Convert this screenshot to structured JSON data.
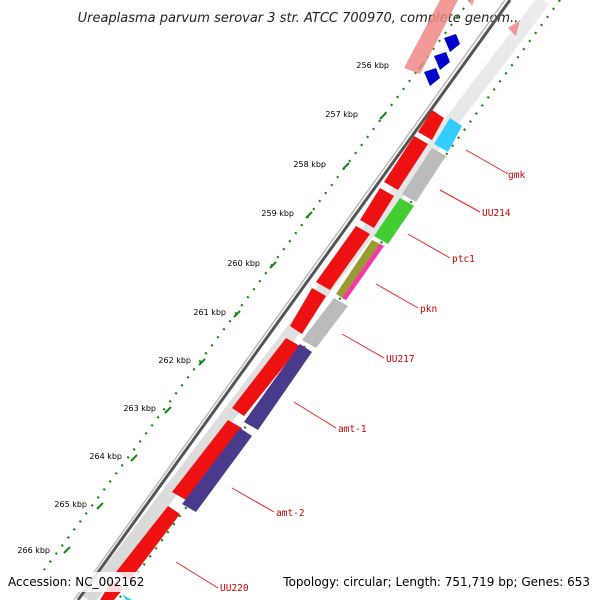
{
  "title": "Ureaplasma parvum serovar 3 str. ATCC 700970, complete genom...",
  "footer": {
    "accession": "Accession: NC_002162",
    "summary": "Topology: circular; Length: 751,719 bp; Genes: 653"
  },
  "scale": {
    "tick_labels": [
      "256 kbp",
      "257 kbp",
      "258 kbp",
      "259 kbp",
      "260 kbp",
      "261 kbp",
      "262 kbp",
      "263 kbp",
      "264 kbp",
      "265 kbp",
      "266 kbp"
    ]
  },
  "genes": [
    {
      "name": "gmk",
      "color": "#33ccff"
    },
    {
      "name": "UU214",
      "color": "#bbbbbb"
    },
    {
      "name": "ptc1",
      "color": "#44cc33"
    },
    {
      "name": "pkn",
      "color": "#ff33aa"
    },
    {
      "name": "UU217",
      "color": "#bbbbbb"
    },
    {
      "name": "amt-1",
      "color": "#4a3a8c"
    },
    {
      "name": "amt-2",
      "color": "#4a3a8c"
    },
    {
      "name": "UU220",
      "color": "#33ccff"
    }
  ],
  "colors": {
    "forward_cds": "#ee1111",
    "backbone": "#666666",
    "tick_dots": "#118811",
    "label_leader": "#ee2222",
    "rna_block": "#0000cc",
    "faded_cds": "#f08888"
  }
}
